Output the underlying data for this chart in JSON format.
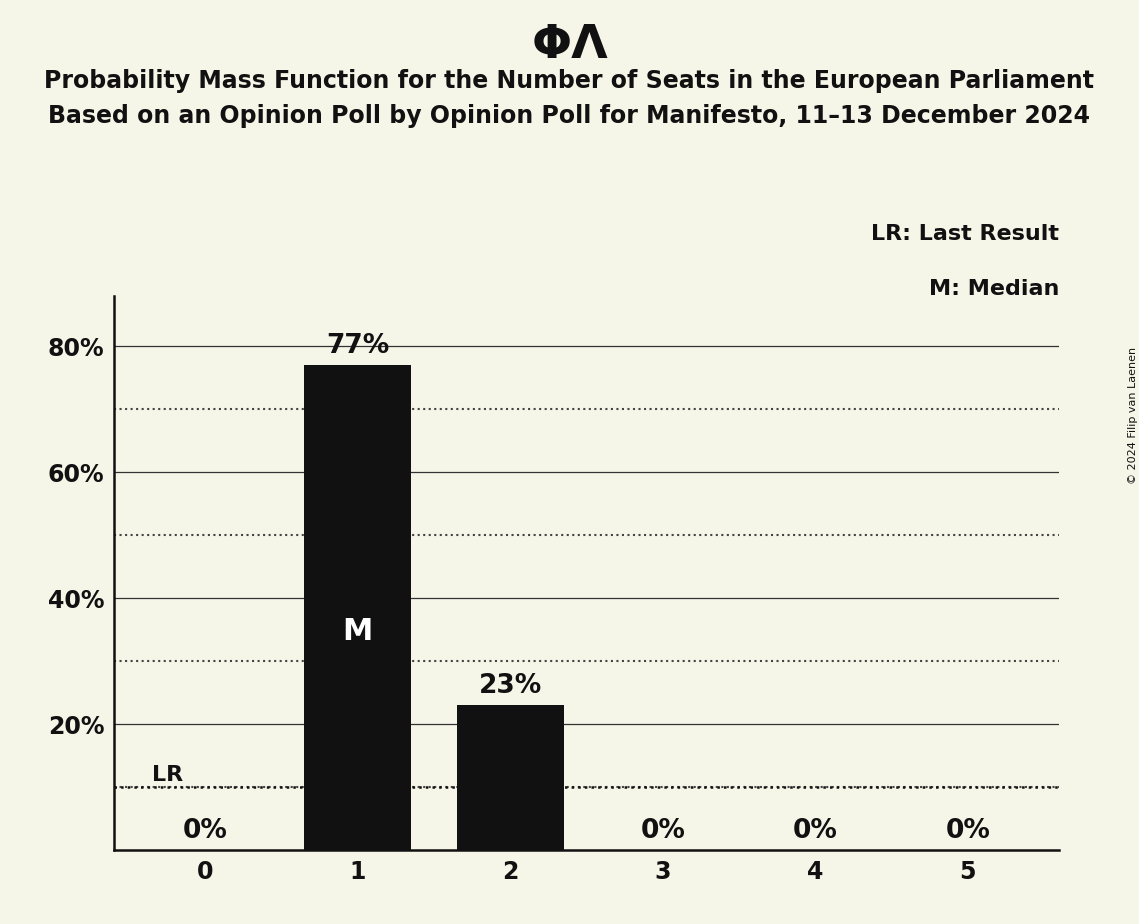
{
  "title_symbol": "ΦΛ",
  "subtitle_line1": "Probability Mass Function for the Number of Seats in the European Parliament",
  "subtitle_line2": "Based on an Opinion Poll by Opinion Poll for Manifesto, 11–13 December 2024",
  "copyright_text": "© 2024 Filip van Laenen",
  "categories": [
    0,
    1,
    2,
    3,
    4,
    5
  ],
  "values": [
    0,
    0.77,
    0.23,
    0,
    0,
    0
  ],
  "bar_color": "#111111",
  "background_color": "#f5f5e8",
  "bar_labels": [
    "0%",
    "77%",
    "23%",
    "0%",
    "0%",
    "0%"
  ],
  "median_bar": 1,
  "lr_value": 0.1,
  "lr_label": "LR",
  "legend_lr": "LR: Last Result",
  "legend_m": "M: Median",
  "ylabel_ticks": [
    0.2,
    0.4,
    0.6,
    0.8
  ],
  "ylabel_tick_labels": [
    "20%",
    "40%",
    "60%",
    "80%"
  ],
  "grid_solid_ticks": [
    0.2,
    0.4,
    0.6,
    0.8
  ],
  "grid_dotted_ticks": [
    0.1,
    0.3,
    0.5,
    0.7
  ],
  "ylim": [
    0,
    0.88
  ],
  "title_fontsize": 34,
  "subtitle_fontsize": 17,
  "label_fontsize": 16,
  "tick_fontsize": 17,
  "legend_fontsize": 16,
  "median_label_fontsize": 22,
  "bar_label_fontsize": 19,
  "copyright_fontsize": 8
}
